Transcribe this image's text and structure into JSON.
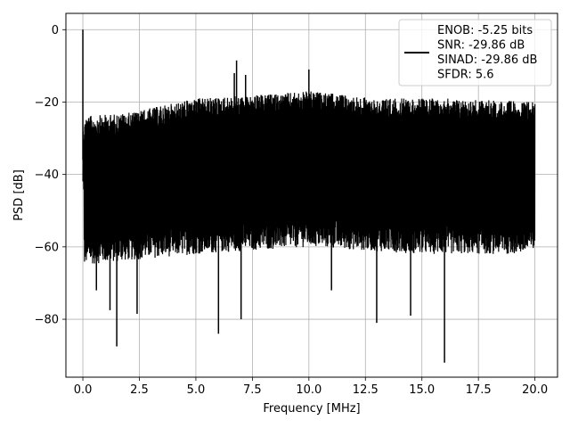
{
  "chart_data": {
    "type": "line",
    "title": "",
    "xlabel": "Frequency [MHz]",
    "ylabel": "PSD [dB]",
    "xlim": [
      -0.75,
      21.0
    ],
    "ylim": [
      -96,
      4.5
    ],
    "xticks": [
      0.0,
      2.5,
      5.0,
      7.5,
      10.0,
      12.5,
      15.0,
      17.5,
      20.0
    ],
    "xtick_labels": [
      "0.0",
      "2.5",
      "5.0",
      "7.5",
      "10.0",
      "12.5",
      "15.0",
      "17.5",
      "20.0"
    ],
    "yticks": [
      0,
      -20,
      -40,
      -60,
      -80
    ],
    "ytick_labels": [
      "0",
      "−20",
      "−40",
      "−60",
      "−80"
    ],
    "grid": true,
    "legend_position": "top-right",
    "series": [
      {
        "name": "",
        "color": "#000000",
        "x_range": [
          0.0,
          20.0
        ],
        "noise_floor_upper_db": [
          [
            0,
            -24
          ],
          [
            2,
            -23
          ],
          [
            5,
            -19
          ],
          [
            8,
            -18
          ],
          [
            10,
            -17
          ],
          [
            13,
            -19
          ],
          [
            16,
            -19
          ],
          [
            20,
            -20
          ]
        ],
        "noise_floor_lower_db": [
          [
            0,
            -65
          ],
          [
            5,
            -62
          ],
          [
            10,
            -60
          ],
          [
            15,
            -62
          ],
          [
            20,
            -62
          ]
        ],
        "peaks": [
          {
            "x": 0.0,
            "y": 0.0
          },
          {
            "x": 6.8,
            "y": -8.5
          },
          {
            "x": 10.0,
            "y": -11.0
          },
          {
            "x": 6.7,
            "y": -12.0
          },
          {
            "x": 7.2,
            "y": -12.5
          }
        ],
        "dips": [
          {
            "x": 1.5,
            "y": -87.5
          },
          {
            "x": 6.0,
            "y": -84.0
          },
          {
            "x": 7.0,
            "y": -80.0
          },
          {
            "x": 13.0,
            "y": -81.0
          },
          {
            "x": 16.0,
            "y": -92.0
          },
          {
            "x": 1.2,
            "y": -77.5
          },
          {
            "x": 2.4,
            "y": -78.5
          },
          {
            "x": 14.5,
            "y": -79.0
          },
          {
            "x": 11.0,
            "y": -72.0
          },
          {
            "x": 0.6,
            "y": -72.0
          }
        ]
      }
    ],
    "legend": {
      "lines": [
        "ENOB: -5.25 bits",
        "SNR: -29.86 dB",
        "SINAD: -29.86 dB",
        "SFDR: 5.6"
      ]
    }
  }
}
